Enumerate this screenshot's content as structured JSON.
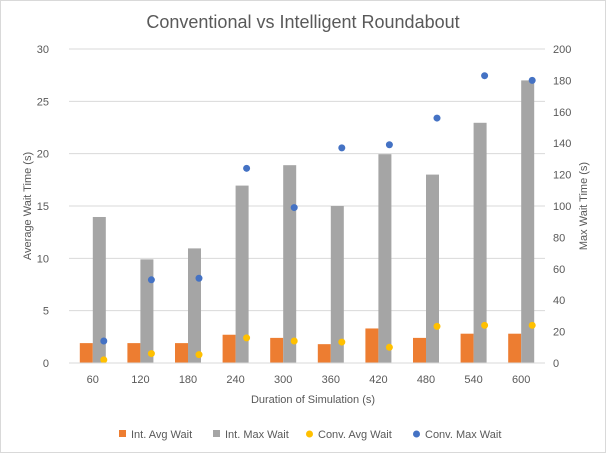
{
  "chart_data": {
    "type": "bar",
    "title": "Conventional vs Intelligent Roundabout",
    "xlabel": "Duration of Simulation (s)",
    "ylabel": "Average Wait Time (s)",
    "y2label": "Max Wait Time (s)",
    "categories": [
      "60",
      "120",
      "180",
      "240",
      "300",
      "360",
      "420",
      "480",
      "540",
      "600"
    ],
    "ylim": [
      0,
      30
    ],
    "y_ticks": [
      0,
      5,
      10,
      15,
      20,
      25,
      30
    ],
    "y2lim": [
      0,
      200
    ],
    "y2_ticks": [
      0,
      20,
      40,
      60,
      80,
      100,
      120,
      140,
      160,
      180,
      200
    ],
    "grid": true,
    "legend_position": "bottom",
    "series": [
      {
        "name": "Int. Avg Wait",
        "type": "bar",
        "axis": "left",
        "color": "#ed7d31",
        "values": [
          1.9,
          1.9,
          1.9,
          2.7,
          2.4,
          1.8,
          3.3,
          2.4,
          2.8,
          2.8
        ]
      },
      {
        "name": "Int. Max Wait",
        "type": "bar",
        "axis": "right",
        "color": "#a5a5a5",
        "values": [
          93,
          66,
          73,
          113,
          126,
          100,
          133,
          120,
          153,
          180
        ]
      },
      {
        "name": "Conv. Avg Wait",
        "type": "scatter",
        "axis": "left",
        "color": "#ffc000",
        "values": [
          0.3,
          0.9,
          0.8,
          2.4,
          2.1,
          2.0,
          1.5,
          3.5,
          3.6,
          3.6
        ]
      },
      {
        "name": "Conv. Max Wait",
        "type": "scatter",
        "axis": "right",
        "color": "#4472c4",
        "values": [
          14,
          53,
          54,
          124,
          99,
          137,
          139,
          156,
          183,
          180
        ]
      }
    ]
  }
}
